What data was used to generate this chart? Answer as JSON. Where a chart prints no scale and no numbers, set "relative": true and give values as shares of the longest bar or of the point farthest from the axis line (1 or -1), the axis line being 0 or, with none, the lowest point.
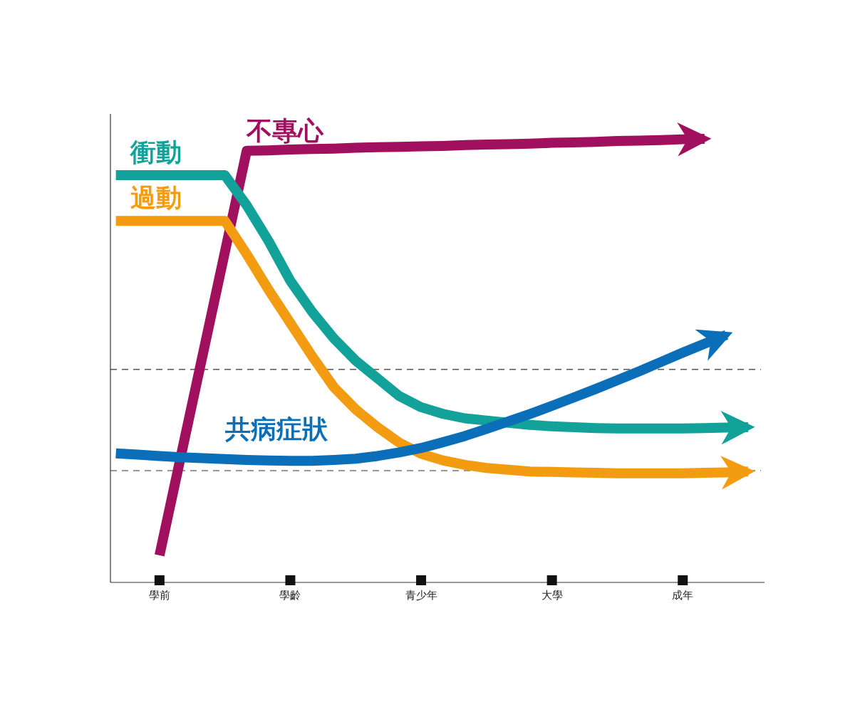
{
  "chart_data": {
    "type": "line",
    "relative": true,
    "categories": [
      null,
      null,
      "學前",
      null,
      null,
      null,
      null,
      null,
      "學齡",
      null,
      null,
      null,
      null,
      null,
      "青少年",
      null,
      null,
      null,
      null,
      null,
      "大學",
      null,
      null,
      null,
      null,
      null,
      "成年",
      null,
      null,
      null
    ],
    "tick_labels": "x",
    "grid": false,
    "legend": false,
    "marker": "none",
    "line_style": "solid",
    "series": [
      {
        "name": "不專心",
        "color": "#a0105f",
        "values": [
          null,
          null,
          0.061,
          0.289,
          0.517,
          0.745,
          0.973,
          0.974,
          0.976,
          0.977,
          0.978,
          0.98,
          0.981,
          0.982,
          0.983,
          0.984,
          0.986,
          0.987,
          0.988,
          0.989,
          0.991,
          0.992,
          0.993,
          0.995,
          0.996,
          0.997,
          0.999,
          1.0,
          null,
          null
        ]
      },
      {
        "name": "衝動",
        "color": "#13a29a",
        "values": [
          0.918,
          0.918,
          0.918,
          0.918,
          0.918,
          0.918,
          0.85,
          0.77,
          0.68,
          0.61,
          0.55,
          0.5,
          0.46,
          0.42,
          0.395,
          0.38,
          0.37,
          0.365,
          0.36,
          0.355,
          0.352,
          0.35,
          0.348,
          0.347,
          0.347,
          0.347,
          0.347,
          0.348,
          0.349,
          0.35
        ]
      },
      {
        "name": "過動",
        "color": "#f39c12",
        "values": [
          0.815,
          0.815,
          0.815,
          0.815,
          0.815,
          0.815,
          0.74,
          0.66,
          0.585,
          0.51,
          0.44,
          0.39,
          0.35,
          0.315,
          0.29,
          0.275,
          0.265,
          0.258,
          0.254,
          0.25,
          0.249,
          0.248,
          0.247,
          0.246,
          0.246,
          0.246,
          0.246,
          0.247,
          0.248,
          0.25
        ]
      },
      {
        "name": "共病症狀",
        "color": "#0a6fb8",
        "values": [
          0.291,
          0.288,
          0.285,
          0.282,
          0.28,
          0.278,
          0.276,
          0.275,
          0.274,
          0.274,
          0.276,
          0.279,
          0.285,
          0.293,
          0.303,
          0.316,
          0.33,
          0.346,
          0.363,
          0.38,
          0.398,
          0.417,
          0.436,
          0.456,
          0.476,
          0.497,
          0.518,
          0.538,
          0.558,
          null
        ]
      }
    ],
    "ref_lines": [
      {
        "axis": "y",
        "value": 0.48,
        "line_style": "dashed",
        "color": "#333333"
      },
      {
        "axis": "y",
        "value": 0.252,
        "line_style": "dashed",
        "color": "#333333"
      }
    ]
  }
}
